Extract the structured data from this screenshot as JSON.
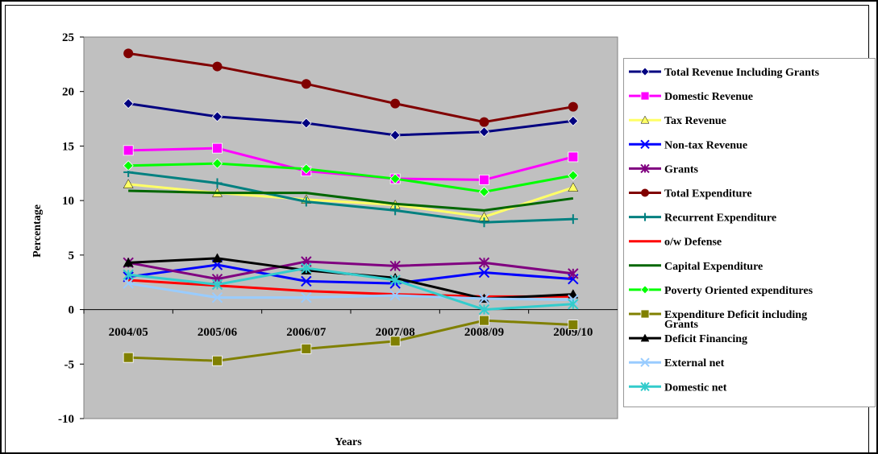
{
  "chart_data": {
    "type": "line",
    "title": "",
    "xlabel": "Years",
    "ylabel": "Percentage",
    "ylim": [
      -10,
      25
    ],
    "yticks": [
      -10,
      -5,
      0,
      5,
      10,
      15,
      20,
      25
    ],
    "grid": false,
    "legend_position": "right",
    "categories": [
      "2004/05",
      "2005/06",
      "2006/07",
      "2007/08",
      "2008/09",
      "2009/10"
    ],
    "series": [
      {
        "name": "Total Revenue Including Grants",
        "color": "#000080",
        "marker": "diamond",
        "values": [
          18.9,
          17.7,
          17.1,
          16.0,
          16.3,
          17.3
        ]
      },
      {
        "name": "Domestic Revenue",
        "color": "#ff00ff",
        "marker": "square",
        "values": [
          14.6,
          14.8,
          12.7,
          12.0,
          11.9,
          14.0
        ]
      },
      {
        "name": "Tax Revenue",
        "color": "#ffff66",
        "marker": "triangle",
        "values": [
          11.5,
          10.7,
          10.1,
          9.6,
          8.5,
          11.2
        ]
      },
      {
        "name": "Non-tax Revenue",
        "color": "#0000ff",
        "marker": "x",
        "values": [
          3.0,
          4.1,
          2.6,
          2.4,
          3.4,
          2.8
        ]
      },
      {
        "name": "Grants",
        "color": "#800080",
        "marker": "star",
        "values": [
          4.3,
          2.8,
          4.4,
          4.0,
          4.3,
          3.3
        ]
      },
      {
        "name": "Total Expenditure",
        "color": "#800000",
        "marker": "circle",
        "values": [
          23.5,
          22.3,
          20.7,
          18.9,
          17.2,
          18.6
        ]
      },
      {
        "name": "Recurrent Expenditure",
        "color": "#008080",
        "marker": "plus",
        "values": [
          12.6,
          11.6,
          9.9,
          9.1,
          8.0,
          8.3
        ]
      },
      {
        "name": "o/w Defense",
        "color": "#ff0000",
        "marker": "none",
        "values": [
          2.7,
          2.2,
          1.7,
          1.4,
          1.2,
          1.2
        ]
      },
      {
        "name": "Capital Expenditure",
        "color": "#006600",
        "marker": "none",
        "values": [
          10.9,
          10.7,
          10.7,
          9.7,
          9.1,
          10.2
        ]
      },
      {
        "name": "Poverty Oriented expenditures",
        "color": "#00ff00",
        "marker": "diamond",
        "values": [
          13.2,
          13.4,
          12.9,
          12.0,
          10.8,
          12.3
        ]
      },
      {
        "name": "Expenditure Deficit including Grants",
        "color": "#808000",
        "marker": "square",
        "values": [
          -4.4,
          -4.7,
          -3.6,
          -2.9,
          -1.0,
          -1.4
        ]
      },
      {
        "name": "Deficit Financing",
        "color": "#000000",
        "marker": "triangle",
        "values": [
          4.3,
          4.7,
          3.6,
          2.9,
          1.0,
          1.4
        ]
      },
      {
        "name": "External net",
        "color": "#99ccff",
        "marker": "x",
        "values": [
          2.4,
          1.1,
          1.1,
          1.3,
          1.0,
          0.9
        ]
      },
      {
        "name": "Domestic net",
        "color": "#33cccc",
        "marker": "star",
        "values": [
          3.2,
          2.3,
          3.8,
          2.7,
          0.0,
          0.5
        ]
      }
    ]
  }
}
